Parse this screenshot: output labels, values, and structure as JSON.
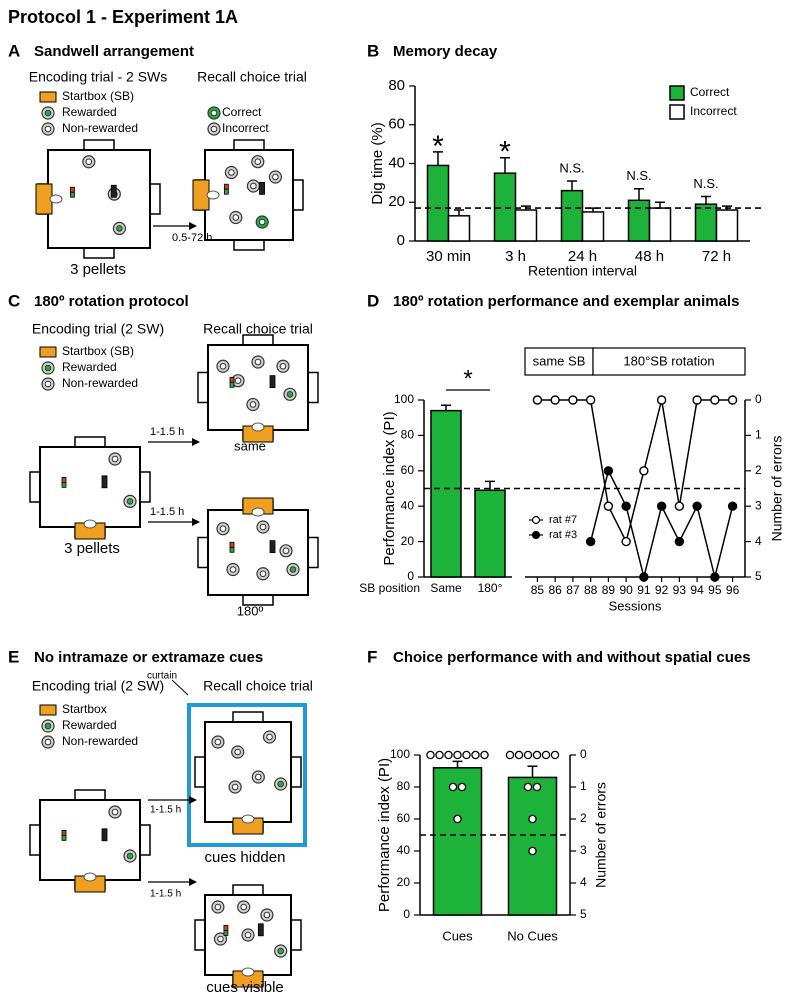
{
  "title": "Protocol 1 - Experiment 1A",
  "panels": {
    "A": {
      "label": "A",
      "title": "Sandwell arrangement",
      "encoding": "Encoding trial - 2 SWs",
      "recall": "Recall choice trial",
      "legend": [
        "Startbox (SB)",
        "Rewarded",
        "Non-rewarded"
      ],
      "recall_legend": [
        "Correct",
        "Incorrect"
      ],
      "pellets": "3 pellets",
      "delay": "0.5-72 h"
    },
    "B": {
      "label": "B",
      "title": "Memory decay"
    },
    "C": {
      "label": "C",
      "title": "180º rotation protocol",
      "encoding": "Encoding trial (2 SW)",
      "recall": "Recall choice trial",
      "legend": [
        "Startbox (SB)",
        "Rewarded",
        "Non-rewarded"
      ],
      "delays": [
        "1-1.5 h",
        "1-1.5 h"
      ],
      "conditions": [
        "same",
        "180º"
      ],
      "pellets": "3 pellets"
    },
    "D": {
      "label": "D",
      "title": "180º rotation performance and exemplar animals",
      "phases": [
        "same SB",
        "180°SB rotation"
      ]
    },
    "E": {
      "label": "E",
      "title": "No intramaze or extramaze cues",
      "encoding": "Encoding trial (2 SW)",
      "recall": "Recall choice trial",
      "legend": [
        "Startbox",
        "Rewarded",
        "Non-rewarded"
      ],
      "curtain": "curtain",
      "delays": [
        "1-1.5 h",
        "1-1.5 h"
      ],
      "conditions": [
        "cues hidden",
        "cues visible"
      ]
    },
    "F": {
      "label": "F",
      "title": "Choice performance with and without spatial cues"
    }
  },
  "chart_data": [
    {
      "type": "bar",
      "ylabel": "Dig time (%)",
      "xlabel": "Retention interval",
      "categories": [
        "30 min",
        "3 h",
        "24 h",
        "48 h",
        "72 h"
      ],
      "series": [
        {
          "name": "Correct",
          "color": "#1db33a",
          "values": [
            39,
            35,
            26,
            21,
            19
          ],
          "errors": [
            7,
            8,
            5,
            6,
            4
          ]
        },
        {
          "name": "Incorrect",
          "color": "#ffffff",
          "values": [
            13,
            16,
            15,
            17,
            16
          ],
          "errors": [
            3,
            2,
            2,
            3,
            2
          ]
        }
      ],
      "annotations": [
        "*",
        "*",
        "N.S.",
        "N.S.",
        "N.S."
      ],
      "chance": 17,
      "ylim": [
        0,
        80
      ],
      "yticks": [
        0,
        20,
        40,
        60,
        80
      ]
    },
    {
      "type": "bar",
      "ylabel": "Performance index (PI)",
      "xlabel": "SB position",
      "categories": [
        "Same",
        "180°"
      ],
      "values": [
        94,
        49
      ],
      "errors": [
        3,
        5
      ],
      "color": "#1db33a",
      "chance": 50,
      "significance": "*",
      "ylim": [
        0,
        100
      ],
      "yticks": [
        0,
        20,
        40,
        60,
        80,
        100
      ]
    },
    {
      "type": "line",
      "xlabel": "Sessions",
      "ylabel": "Number of errors",
      "x": [
        85,
        86,
        87,
        88,
        89,
        90,
        91,
        92,
        93,
        94,
        95,
        96
      ],
      "xlim": [
        84.3,
        96.7
      ],
      "xticks": [
        85,
        86,
        87,
        88,
        89,
        90,
        91,
        92,
        93,
        94,
        95,
        96
      ],
      "series": [
        {
          "name": "rat #7",
          "color": "#000000",
          "marker": "open",
          "values": [
            0,
            0,
            0,
            0,
            3,
            4,
            2,
            0,
            3,
            0,
            0,
            0
          ]
        },
        {
          "name": "rat #3",
          "color": "#000000",
          "marker": "filled",
          "values": [
            null,
            null,
            null,
            4,
            2,
            3,
            5,
            3,
            4,
            3,
            5,
            3
          ]
        }
      ],
      "ylim": [
        0,
        5
      ],
      "y_inverted": true,
      "yticks": [
        0,
        1,
        2,
        3,
        4,
        5
      ]
    },
    {
      "type": "bar",
      "ylabel": "Performance index (PI)",
      "y2label": "Number of errors",
      "categories": [
        "Cues",
        "No Cues"
      ],
      "values": [
        92,
        86
      ],
      "errors": [
        4,
        7
      ],
      "color": "#1db33a",
      "individual_errors": [
        [
          0,
          0,
          0,
          0,
          0,
          0,
          0,
          1,
          1,
          2
        ],
        [
          0,
          0,
          0,
          0,
          0,
          0,
          1,
          1,
          2,
          3
        ]
      ],
      "chance": 50,
      "ylim": [
        0,
        100
      ],
      "yticks": [
        0,
        20,
        40,
        60,
        80,
        100
      ],
      "y2lim": [
        0,
        5
      ],
      "y2_inverted": true,
      "y2ticks": [
        0,
        1,
        2,
        3,
        4,
        5
      ]
    }
  ]
}
